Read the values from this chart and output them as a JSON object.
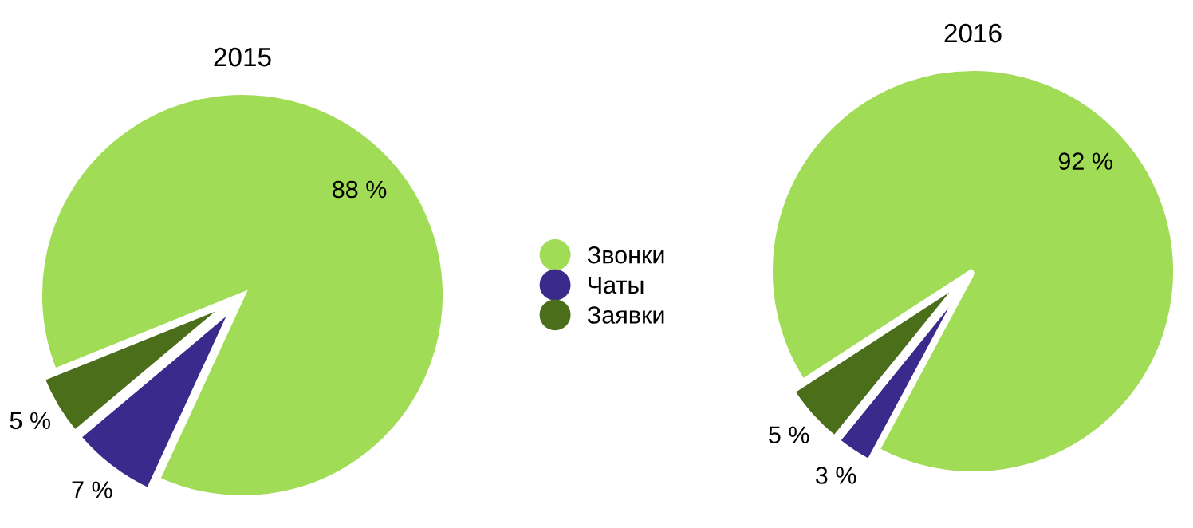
{
  "chart_data": [
    {
      "type": "pie",
      "title": "2015",
      "categories": [
        "Звонки",
        "Чаты",
        "Заявки"
      ],
      "values": [
        88,
        7,
        5
      ],
      "colors": [
        "#a0dc55",
        "#3a2a8c",
        "#4a6e1a"
      ],
      "value_labels": [
        "88 %",
        "7 %",
        "5 %"
      ],
      "legend": "right"
    },
    {
      "type": "pie",
      "title": "2016",
      "categories": [
        null,
        null,
        null
      ],
      "values": [
        92,
        3,
        5
      ],
      "colors": [
        "#a0dc55",
        "#3a2a8c",
        "#4a6e1a"
      ],
      "value_labels": [
        "92 %",
        "3 %",
        "5 %"
      ]
    }
  ]
}
